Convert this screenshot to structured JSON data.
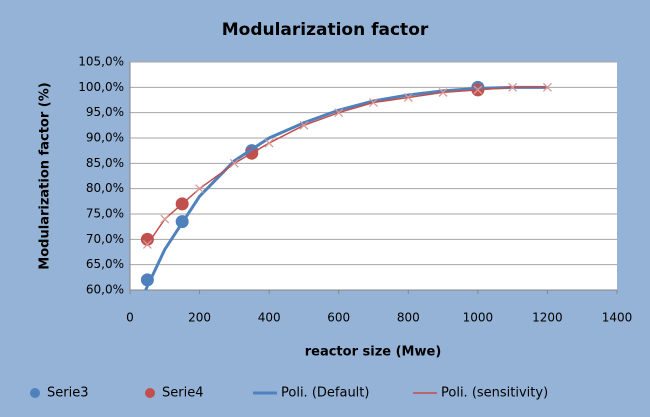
{
  "chart_data": {
    "type": "scatter",
    "title": "Modularization factor",
    "x_label": "reactor size (Mwe)",
    "y_label": "Modularization factor (%)",
    "xlim": [
      0,
      1400
    ],
    "xticks": [
      0,
      200,
      400,
      600,
      800,
      1000,
      1200,
      1400
    ],
    "ylim": [
      60,
      105
    ],
    "yticks": [
      {
        "value": 60,
        "label": "60,0%"
      },
      {
        "value": 65,
        "label": "65,0%"
      },
      {
        "value": 70,
        "label": "70,0%"
      },
      {
        "value": 75,
        "label": "75,0%"
      },
      {
        "value": 80,
        "label": "80,0%"
      },
      {
        "value": 85,
        "label": "85,0%"
      },
      {
        "value": 90,
        "label": "90,0%"
      },
      {
        "value": 95,
        "label": "95,0%"
      },
      {
        "value": 100,
        "label": "100,0%"
      },
      {
        "value": 105,
        "label": "105,0%"
      }
    ],
    "grid": true,
    "legend": "bottom",
    "series": [
      {
        "name": "Serie3",
        "color": "#4f81bd",
        "marker": "circle",
        "x": [
          50,
          150,
          350,
          1000
        ],
        "values": [
          62,
          73.5,
          87.5,
          100
        ]
      },
      {
        "name": "Serie4",
        "color": "#c0504d",
        "marker": "circle",
        "x": [
          50,
          150,
          350,
          1000
        ],
        "values": [
          70,
          77,
          87,
          99.5
        ]
      },
      {
        "name": "Poli. (Default)",
        "color": "#4f81bd",
        "marker": "line",
        "x": [
          45,
          100,
          200,
          300,
          400,
          500,
          600,
          700,
          800,
          900,
          1000,
          1100,
          1200
        ],
        "values": [
          60,
          68,
          78.5,
          85.5,
          90,
          93,
          95.5,
          97.3,
          98.5,
          99.3,
          99.8,
          100,
          100
        ]
      },
      {
        "name": "Poli. (sensitivity)",
        "color": "#c0504d",
        "marker": "cross",
        "x": [
          50,
          100,
          200,
          300,
          400,
          500,
          600,
          700,
          800,
          900,
          1000,
          1100,
          1200
        ],
        "values": [
          69,
          74,
          80,
          85,
          89,
          92.5,
          95,
          97,
          98,
          99,
          99.5,
          100,
          100
        ]
      }
    ]
  }
}
